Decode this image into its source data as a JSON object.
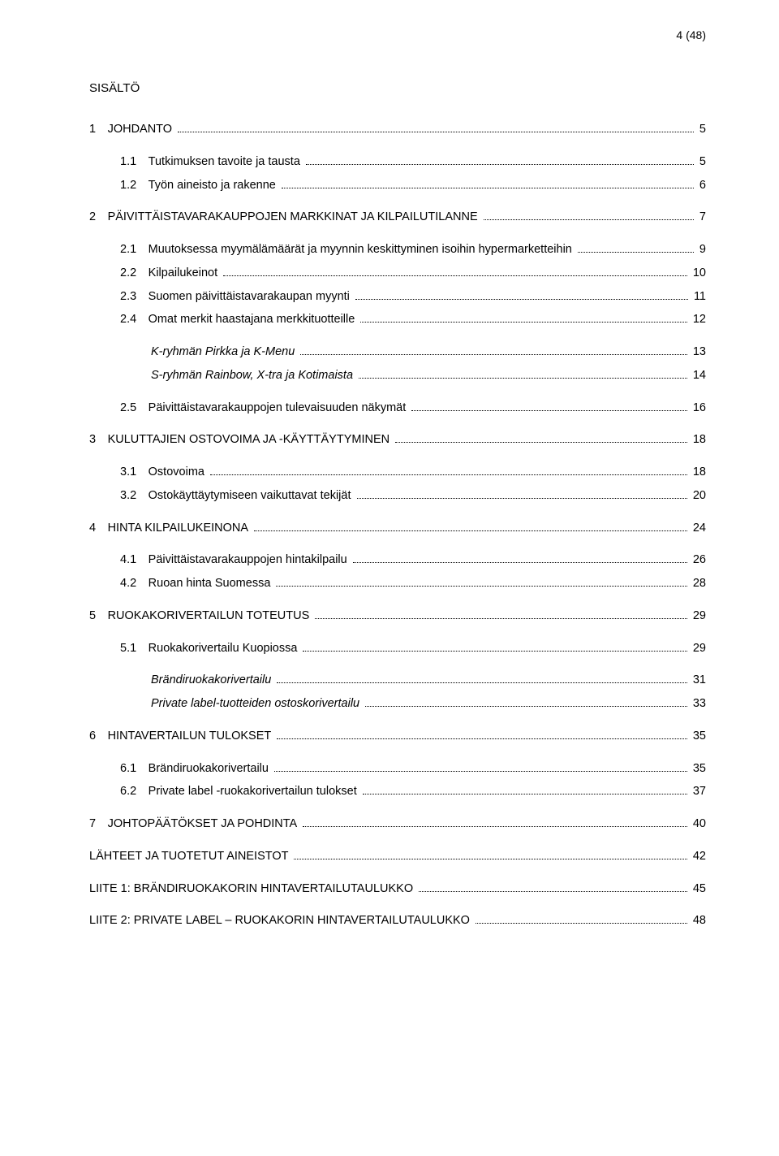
{
  "page_header": "4 (48)",
  "title": "SISÄLTÖ",
  "font_family": "Verdana",
  "entries": [
    {
      "label": "1",
      "text": "JOHDANTO",
      "page": "5",
      "indent": 0,
      "gap": true
    },
    {
      "label": "1.1",
      "text": "Tutkimuksen tavoite ja tausta",
      "page": "5",
      "indent": 1,
      "gap": true
    },
    {
      "label": "1.2",
      "text": "Työn aineisto ja rakenne",
      "page": "6",
      "indent": 1
    },
    {
      "label": "2",
      "text": "PÄIVITTÄISTAVARAKAUPPOJEN MARKKINAT JA KILPAILUTILANNE",
      "page": "7",
      "indent": 0,
      "gap": true
    },
    {
      "label": "2.1",
      "text": "Muutoksessa myymälämäärät ja myynnin keskittyminen isoihin hypermarketteihin",
      "page": "9",
      "indent": 1,
      "gap": true
    },
    {
      "label": "2.2",
      "text": "Kilpailukeinot",
      "page": "10",
      "indent": 1
    },
    {
      "label": "2.3",
      "text": "Suomen päivittäistavarakaupan myynti",
      "page": "11",
      "indent": 1
    },
    {
      "label": "2.4",
      "text": "Omat merkit haastajana merkkituotteille",
      "page": "12",
      "indent": 1
    },
    {
      "label": "",
      "text": "K-ryhmän Pirkka ja K-Menu",
      "page": "13",
      "indent": 2,
      "italic": true,
      "gap": true
    },
    {
      "label": "",
      "text": "S-ryhmän Rainbow, X-tra ja Kotimaista",
      "page": "14",
      "indent": 2,
      "italic": true
    },
    {
      "label": "2.5",
      "text": "Päivittäistavarakauppojen tulevaisuuden näkymät",
      "page": "16",
      "indent": 1,
      "gap": true
    },
    {
      "label": "3",
      "text": "KULUTTAJIEN OSTOVOIMA JA -KÄYTTÄYTYMINEN",
      "page": "18",
      "indent": 0,
      "gap": true
    },
    {
      "label": "3.1",
      "text": "Ostovoima",
      "page": "18",
      "indent": 1,
      "gap": true
    },
    {
      "label": "3.2",
      "text": "Ostokäyttäytymiseen vaikuttavat tekijät",
      "page": "20",
      "indent": 1
    },
    {
      "label": "4",
      "text": "HINTA KILPAILUKEINONA",
      "page": "24",
      "indent": 0,
      "gap": true
    },
    {
      "label": "4.1",
      "text": "Päivittäistavarakauppojen hintakilpailu",
      "page": "26",
      "indent": 1,
      "gap": true
    },
    {
      "label": "4.2",
      "text": "Ruoan hinta Suomessa",
      "page": "28",
      "indent": 1
    },
    {
      "label": "5",
      "text": "RUOKAKORIVERTAILUN TOTEUTUS",
      "page": "29",
      "indent": 0,
      "gap": true
    },
    {
      "label": "5.1",
      "text": "Ruokakorivertailu Kuopiossa",
      "page": "29",
      "indent": 1,
      "gap": true
    },
    {
      "label": "",
      "text": "Brändiruokakorivertailu",
      "page": "31",
      "indent": 2,
      "italic": true,
      "gap": true
    },
    {
      "label": "",
      "text": "Private label-tuotteiden ostoskorivertailu",
      "page": "33",
      "indent": 2,
      "italic": true
    },
    {
      "label": "6",
      "text": "HINTAVERTAILUN TULOKSET",
      "page": "35",
      "indent": 0,
      "gap": true
    },
    {
      "label": "6.1",
      "text": "Brändiruokakorivertailu",
      "page": "35",
      "indent": 1,
      "gap": true
    },
    {
      "label": "6.2",
      "text": "Private label -ruokakorivertailun tulokset",
      "page": "37",
      "indent": 1
    },
    {
      "label": "7",
      "text": "JOHTOPÄÄTÖKSET JA POHDINTA",
      "page": "40",
      "indent": 0,
      "gap": true
    },
    {
      "label": "",
      "text": "LÄHTEET JA TUOTETUT AINEISTOT",
      "page": "42",
      "indent": 0,
      "gap": true,
      "appendix": true
    },
    {
      "label": "",
      "text": "LIITE 1: BRÄNDIRUOKAKORIN HINTAVERTAILUTAULUKKO",
      "page": "45",
      "indent": 0,
      "gap": true,
      "appendix": true
    },
    {
      "label": "",
      "text": "LIITE 2: PRIVATE LABEL – RUOKAKORIN HINTAVERTAILUTAULUKKO",
      "page": "48",
      "indent": 0,
      "gap": true,
      "appendix": true
    }
  ]
}
